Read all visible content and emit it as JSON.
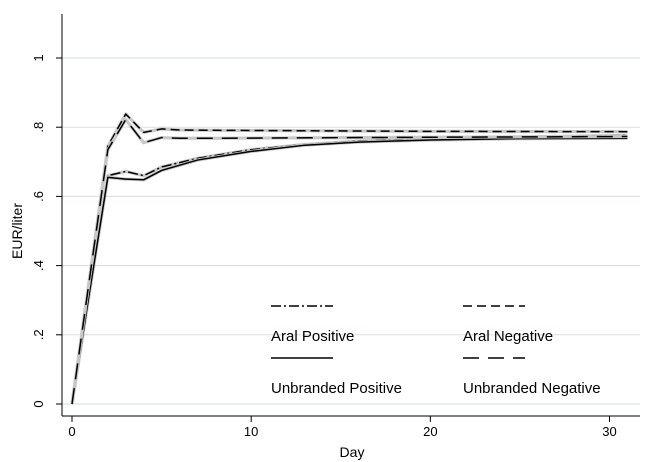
{
  "chart_data": {
    "type": "line",
    "title": "",
    "xlabel": "Day",
    "ylabel": "EUR/liter",
    "xlim": [
      0,
      31
    ],
    "ylim": [
      0,
      1.1
    ],
    "x_ticks": [
      {
        "value": 0,
        "label": "0"
      },
      {
        "value": 10,
        "label": "10"
      },
      {
        "value": 20,
        "label": "20"
      },
      {
        "value": 30,
        "label": "30"
      }
    ],
    "y_ticks": [
      {
        "value": 0,
        "label": "0"
      },
      {
        "value": 0.2,
        "label": ".2"
      },
      {
        "value": 0.4,
        "label": ".4"
      },
      {
        "value": 0.6,
        "label": ".6"
      },
      {
        "value": 0.8,
        "label": ".8"
      },
      {
        "value": 1,
        "label": "1"
      }
    ],
    "grid": true,
    "legend_position": "bottom-right inside",
    "series": [
      {
        "name": "Aral Positive",
        "dash": "dash-dot",
        "color": "#000000",
        "points": [
          [
            0,
            0
          ],
          [
            1,
            0.34
          ],
          [
            2,
            0.66
          ],
          [
            3,
            0.672
          ],
          [
            4,
            0.66
          ],
          [
            5,
            0.685
          ],
          [
            7,
            0.71
          ],
          [
            10,
            0.735
          ],
          [
            13,
            0.75
          ],
          [
            16,
            0.76
          ],
          [
            20,
            0.766
          ],
          [
            25,
            0.772
          ],
          [
            31,
            0.776
          ]
        ]
      },
      {
        "name": "Aral Negative",
        "dash": "short-dash",
        "color": "#000000",
        "points": [
          [
            0,
            0
          ],
          [
            1,
            0.37
          ],
          [
            2,
            0.745
          ],
          [
            3,
            0.838
          ],
          [
            4,
            0.785
          ],
          [
            5,
            0.795
          ],
          [
            6,
            0.792
          ],
          [
            8,
            0.791
          ],
          [
            12,
            0.79
          ],
          [
            20,
            0.788
          ],
          [
            31,
            0.787
          ]
        ]
      },
      {
        "name": "Unbranded Positive",
        "dash": "solid",
        "color": "#000000",
        "points": [
          [
            0,
            0
          ],
          [
            1,
            0.33
          ],
          [
            2,
            0.655
          ],
          [
            3,
            0.65
          ],
          [
            4,
            0.648
          ],
          [
            5,
            0.675
          ],
          [
            7,
            0.705
          ],
          [
            10,
            0.73
          ],
          [
            13,
            0.748
          ],
          [
            16,
            0.757
          ],
          [
            20,
            0.763
          ],
          [
            25,
            0.767
          ],
          [
            31,
            0.768
          ]
        ]
      },
      {
        "name": "Unbranded Negative",
        "dash": "long-dash",
        "color": "#000000",
        "points": [
          [
            0,
            0
          ],
          [
            1,
            0.37
          ],
          [
            2,
            0.735
          ],
          [
            3,
            0.822
          ],
          [
            4,
            0.755
          ],
          [
            5,
            0.77
          ],
          [
            6,
            0.768
          ],
          [
            8,
            0.768
          ],
          [
            12,
            0.769
          ],
          [
            20,
            0.771
          ],
          [
            31,
            0.773
          ]
        ]
      }
    ]
  }
}
